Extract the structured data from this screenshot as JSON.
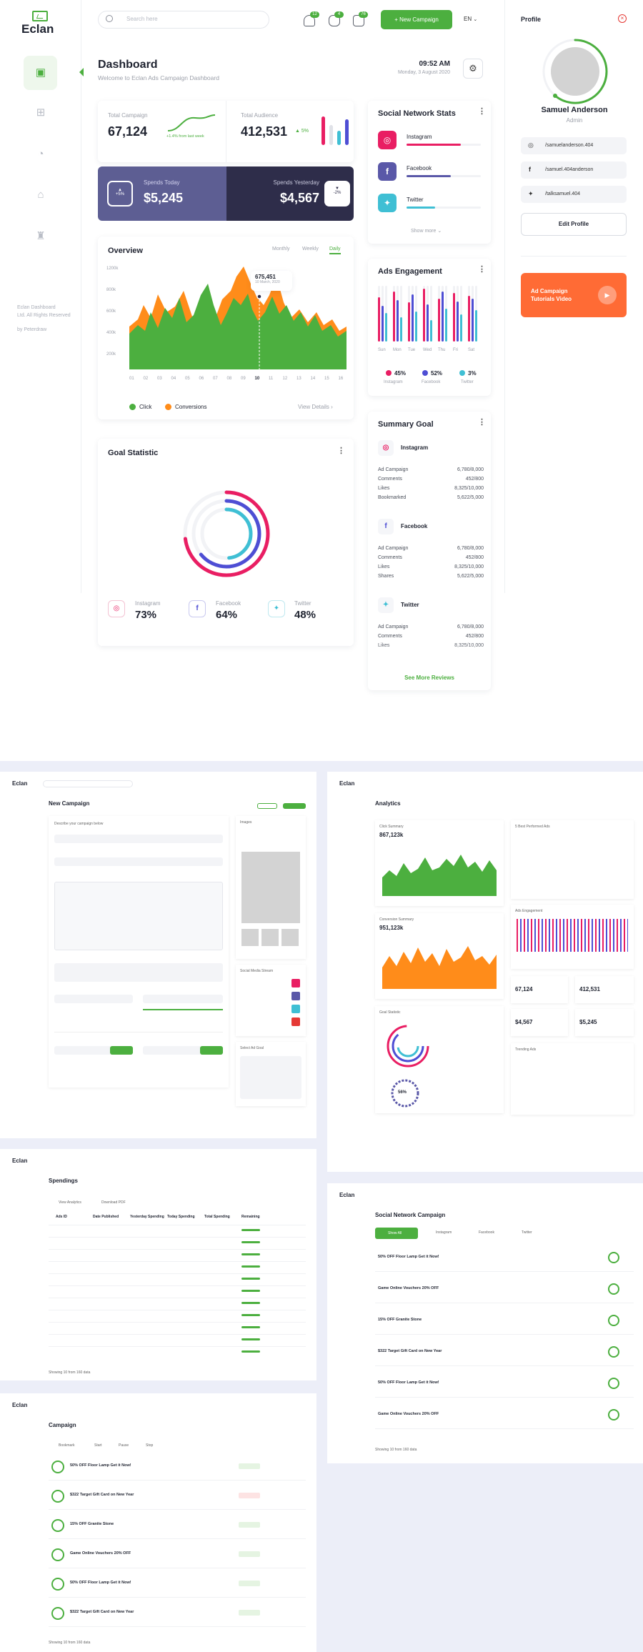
{
  "app": {
    "name": "Eclan"
  },
  "search": {
    "placeholder": "Search here"
  },
  "header": {
    "badges": [
      "12",
      "4",
      "76"
    ],
    "new_campaign": "+ New Campaign",
    "lang": "EN"
  },
  "sidebar": {
    "footer": [
      "Eclan Dashboard",
      "Ltd. All Rights Reserved",
      "by Peterdraw"
    ]
  },
  "dashboard": {
    "title": "Dashboard",
    "subtitle": "Welcome to Eclan Ads Campaign Dashboard",
    "time": "09:52 AM",
    "date": "Monday, 3 August 2020"
  },
  "stats": {
    "total_campaign": {
      "label": "Total Campaign",
      "value": "67,124",
      "note": "+1.4% from last week"
    },
    "total_audience": {
      "label": "Total Audience",
      "value": "412,531",
      "change": "5%"
    }
  },
  "spends": {
    "today_label": "Spends Today",
    "today_value": "$5,245",
    "today_pct": "+5%",
    "yesterday_label": "Spends Yesterday",
    "yesterday_value": "$4,567",
    "yesterday_pct": "-2%"
  },
  "overview": {
    "title": "Overview",
    "tabs": [
      "Monthly",
      "Weekly",
      "Daily"
    ],
    "yticks": [
      "1200k",
      "800k",
      "600k",
      "400k",
      "200k"
    ],
    "xticks": [
      "01",
      "02",
      "03",
      "04",
      "05",
      "06",
      "07",
      "08",
      "09",
      "10",
      "11",
      "12",
      "13",
      "14",
      "15",
      "16"
    ],
    "tooltip_value": "675,451",
    "tooltip_date": "10 March, 2020",
    "legend": [
      "Click",
      "Conversions"
    ],
    "view_details": "View Details"
  },
  "goal": {
    "title": "Goal Statistic",
    "items": [
      {
        "name": "Instagram",
        "pct": "73%"
      },
      {
        "name": "Facebook",
        "pct": "64%"
      },
      {
        "name": "Twitter",
        "pct": "48%"
      }
    ]
  },
  "social": {
    "title": "Social Network Stats",
    "items": [
      "Instagram",
      "Facebook",
      "Twitter"
    ],
    "show_more": "Show more"
  },
  "engagement": {
    "title": "Ads Engagement",
    "days": [
      "Sun",
      "Mon",
      "Tue",
      "Wed",
      "Thu",
      "Fri",
      "Sat"
    ],
    "legend": [
      {
        "pct": "45%",
        "name": "Instagram"
      },
      {
        "pct": "52%",
        "name": "Facebook"
      },
      {
        "pct": "3%",
        "name": "Twitter"
      }
    ]
  },
  "summary": {
    "title": "Summary Goal",
    "sections": [
      {
        "name": "Instagram",
        "rows": [
          [
            "Ad Campaign",
            "6,780/8,000"
          ],
          [
            "Comments",
            "452/800"
          ],
          [
            "Likes",
            "8,325/10,000"
          ],
          [
            "Bookmarked",
            "5,622/5,000"
          ]
        ]
      },
      {
        "name": "Facebook",
        "rows": [
          [
            "Ad Campaign",
            "6,780/8,000"
          ],
          [
            "Comments",
            "452/800"
          ],
          [
            "Likes",
            "8,325/10,000"
          ],
          [
            "Shares",
            "5,622/5,000"
          ]
        ]
      },
      {
        "name": "Twitter",
        "rows": [
          [
            "Ad Campaign",
            "6,780/8,000"
          ],
          [
            "Comments",
            "452/800"
          ],
          [
            "Likes",
            "8,325/10,000"
          ]
        ]
      }
    ],
    "see_more": "See More Reviews"
  },
  "profile": {
    "title": "Profile",
    "name": "Samuel Anderson",
    "role": "Admin",
    "links": [
      "/samuelanderson.404",
      "/samuel.404anderson",
      "/talksamuel.404"
    ],
    "edit": "Edit Profile",
    "promo": "Ad Campaign Tutorials Video"
  },
  "lower": {
    "new_campaign": {
      "title": "New Campaign",
      "section": "Describe your campaign below",
      "images": "Images",
      "social": "Social Media Stream",
      "select_goal": "Select Ad Goal"
    },
    "analytics": {
      "title": "Analytics",
      "click_summary": "Click Summary",
      "click_value": "867,123k",
      "conversion_summary": "Conversion Summary",
      "conversion_value": "951,123k",
      "goal": "Goal Statistic",
      "best": "5 Best Performed Ads",
      "engagement": "Ads Engagement",
      "trending": "Trending Ads",
      "total_campaign": "67,124",
      "total_audience": "412,531",
      "yesterday": "$4,567",
      "today": "$5,245",
      "pct": "56%"
    },
    "spendings": {
      "title": "Spendings",
      "actions": [
        "View Analytics",
        "Download PDF"
      ],
      "columns": [
        "Ads ID",
        "Date Published",
        "Yesterday Spending",
        "Today Spending",
        "Total Spending",
        "Remaining"
      ],
      "footer": "Showing 10 from 160 data"
    },
    "social_campaign": {
      "title": "Social Network Campaign",
      "tabs": [
        "Show All",
        "Instagram",
        "Facebook",
        "Twitter"
      ],
      "items": [
        "50% OFF Floor Lamp Get it Now!",
        "Game Online Vouchers 20% OFF",
        "15% OFF Granite Stone",
        "$322 Target Gift Card on New Year",
        "50% OFF Floor Lamp Get it Now!",
        "Game Online Vouchers 20% OFF"
      ],
      "footer": "Showing 10 from 160 data"
    },
    "campaign": {
      "title": "Campaign",
      "actions": [
        "Bookmark",
        "Start",
        "Pause",
        "Stop"
      ],
      "items": [
        "50% OFF Floor Lamp Get it Now!",
        "$322 Target Gift Card on New Year",
        "15% OFF Granite Stone",
        "Game Online Vouchers 20% OFF",
        "50% OFF Floor Lamp Get it Now!",
        "$322 Target Gift Card on New Year"
      ],
      "footer": "Showing 10 from 160 data"
    }
  },
  "colors": {
    "green": "#4caf3f",
    "orange": "#ff8c1a",
    "navy": "#2e2d52",
    "purple": "#5a58a8",
    "pink": "#e91e63",
    "blue": "#4e4ed4",
    "cyan": "#3fbfd4"
  }
}
